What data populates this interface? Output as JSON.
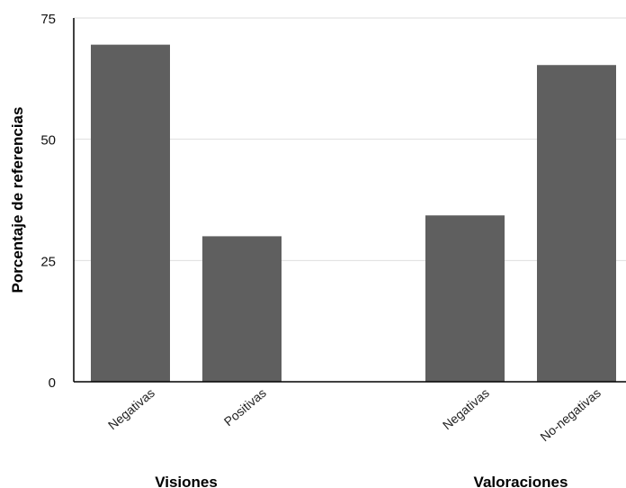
{
  "chart_data": {
    "type": "bar",
    "ylabel": "Porcentaje de referencias",
    "ylim": [
      0,
      75
    ],
    "yticks": [
      0,
      25,
      50,
      75
    ],
    "grid": true,
    "bar_color": "#5f5f5f",
    "groups": [
      {
        "label": "Visiones",
        "categories": [
          "Negativas",
          "Positivas"
        ],
        "values": [
          69.5,
          30
        ]
      },
      {
        "label": "Valoraciones",
        "categories": [
          "Negativas",
          "No-negativas"
        ],
        "values": [
          34.3,
          65.3
        ]
      }
    ]
  }
}
